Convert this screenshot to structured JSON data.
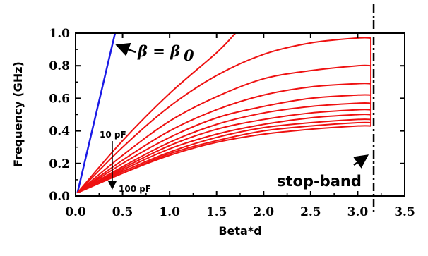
{
  "chart_data": {
    "type": "line",
    "title": "",
    "xlabel": "Beta*d",
    "ylabel": "Frequency (GHz)",
    "xlim": [
      0.0,
      3.5
    ],
    "ylim": [
      0.0,
      1.0
    ],
    "xticks": [
      0.0,
      0.5,
      1.0,
      1.5,
      2.0,
      2.5,
      3.0,
      3.5
    ],
    "xtick_labels": [
      "0.0",
      "0.5",
      "1.0",
      "1.5",
      "2.0",
      "2.5",
      "3.0",
      "3.5"
    ],
    "yticks": [
      0.0,
      0.2,
      0.4,
      0.6,
      0.8,
      1.0
    ],
    "ytick_labels": [
      "0.0",
      "0.2",
      "0.4",
      "0.6",
      "0.8",
      "1.0"
    ],
    "grid": false,
    "light_line": {
      "color": "#1a1ae6",
      "x": [
        0.02,
        0.42
      ],
      "y": [
        0.02,
        1.0
      ]
    },
    "series_color": "#ee1111",
    "series": [
      {
        "x": [
          0.02,
          0.5,
          1.0,
          1.5,
          1.7
        ],
        "y": [
          0.02,
          0.34,
          0.63,
          0.88,
          1.0
        ]
      },
      {
        "x": [
          0.02,
          0.5,
          1.0,
          1.5,
          2.0,
          2.5,
          3.0,
          3.14
        ],
        "y": [
          0.02,
          0.3,
          0.55,
          0.74,
          0.87,
          0.94,
          0.97,
          0.97
        ]
      },
      {
        "x": [
          0.02,
          0.5,
          1.0,
          1.5,
          2.0,
          2.5,
          3.0,
          3.14
        ],
        "y": [
          0.02,
          0.25,
          0.46,
          0.61,
          0.72,
          0.77,
          0.8,
          0.8
        ]
      },
      {
        "x": [
          0.02,
          0.5,
          1.0,
          1.5,
          2.0,
          2.5,
          3.0,
          3.14
        ],
        "y": [
          0.02,
          0.22,
          0.4,
          0.53,
          0.62,
          0.67,
          0.69,
          0.69
        ]
      },
      {
        "x": [
          0.02,
          0.5,
          1.0,
          1.5,
          2.0,
          2.5,
          3.0,
          3.14
        ],
        "y": [
          0.02,
          0.2,
          0.36,
          0.48,
          0.55,
          0.6,
          0.62,
          0.62
        ]
      },
      {
        "x": [
          0.02,
          0.5,
          1.0,
          1.5,
          2.0,
          2.5,
          3.0,
          3.14
        ],
        "y": [
          0.02,
          0.18,
          0.33,
          0.44,
          0.51,
          0.55,
          0.57,
          0.57
        ]
      },
      {
        "x": [
          0.02,
          0.5,
          1.0,
          1.5,
          2.0,
          2.5,
          3.0,
          3.14
        ],
        "y": [
          0.02,
          0.17,
          0.31,
          0.41,
          0.47,
          0.51,
          0.53,
          0.53
        ]
      },
      {
        "x": [
          0.02,
          0.5,
          1.0,
          1.5,
          2.0,
          2.5,
          3.0,
          3.14
        ],
        "y": [
          0.02,
          0.16,
          0.29,
          0.38,
          0.44,
          0.48,
          0.5,
          0.5
        ]
      },
      {
        "x": [
          0.02,
          0.5,
          1.0,
          1.5,
          2.0,
          2.5,
          3.0,
          3.14
        ],
        "y": [
          0.02,
          0.15,
          0.27,
          0.36,
          0.42,
          0.45,
          0.47,
          0.47
        ]
      },
      {
        "x": [
          0.02,
          0.5,
          1.0,
          1.5,
          2.0,
          2.5,
          3.0,
          3.14
        ],
        "y": [
          0.02,
          0.14,
          0.26,
          0.34,
          0.4,
          0.43,
          0.45,
          0.45
        ]
      },
      {
        "x": [
          0.02,
          0.5,
          1.0,
          1.5,
          2.0,
          2.5,
          3.0,
          3.14
        ],
        "y": [
          0.02,
          0.14,
          0.25,
          0.33,
          0.38,
          0.41,
          0.43,
          0.43
        ]
      }
    ],
    "stop_band_x": 3.14,
    "dashdot_x": 3.17,
    "annotations": {
      "beta_equation": "β = β",
      "beta_subscript": "0",
      "cap_top": "10 pF",
      "cap_bottom": "100 pF",
      "stop_band": "stop-band"
    }
  }
}
